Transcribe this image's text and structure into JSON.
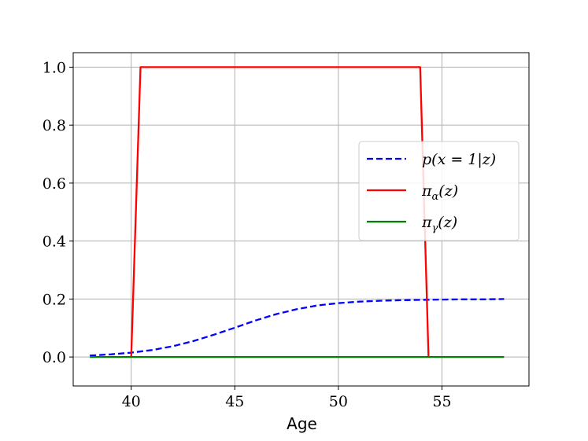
{
  "chart_data": {
    "type": "line",
    "xlabel": "Age",
    "ylabel": "",
    "title": "",
    "xlim": [
      37.2,
      59.2
    ],
    "ylim": [
      -0.1,
      1.05
    ],
    "xticks": [
      40,
      45,
      50,
      55
    ],
    "yticks": [
      0.0,
      0.2,
      0.4,
      0.6,
      0.8,
      1.0
    ],
    "xtick_labels": [
      "40",
      "45",
      "50",
      "55"
    ],
    "ytick_labels": [
      "0.0",
      "0.2",
      "0.4",
      "0.6",
      "0.8",
      "1.0"
    ],
    "grid": true,
    "legend_position": "center-right",
    "series": [
      {
        "name": "p(x = 1|z)",
        "legend_main": "p(x = 1|z)",
        "legend_sub": "",
        "legend_tail": "",
        "color": "#0000ff",
        "dash": "dashed",
        "x": [
          38,
          39,
          40,
          41,
          42,
          43,
          44,
          45,
          46,
          47,
          48,
          49,
          50,
          51,
          52,
          53,
          54,
          55,
          56,
          57,
          58
        ],
        "y": [
          0.005,
          0.009,
          0.015,
          0.024,
          0.037,
          0.055,
          0.077,
          0.101,
          0.126,
          0.148,
          0.165,
          0.178,
          0.186,
          0.191,
          0.194,
          0.196,
          0.197,
          0.198,
          0.199,
          0.199,
          0.2
        ]
      },
      {
        "name": "π_α(z)",
        "legend_main": "π",
        "legend_sub": "α",
        "legend_tail": "(z)",
        "color": "#ff0000",
        "dash": "solid",
        "x": [
          40.0,
          40.45,
          53.95,
          54.35
        ],
        "y": [
          0.0,
          1.0,
          1.0,
          0.0
        ]
      },
      {
        "name": "π_γ(z)",
        "legend_main": "π",
        "legend_sub": "γ",
        "legend_tail": "(z)",
        "color": "#008000",
        "dash": "solid",
        "x": [
          38,
          58
        ],
        "y": [
          0.0,
          0.0
        ]
      }
    ]
  }
}
